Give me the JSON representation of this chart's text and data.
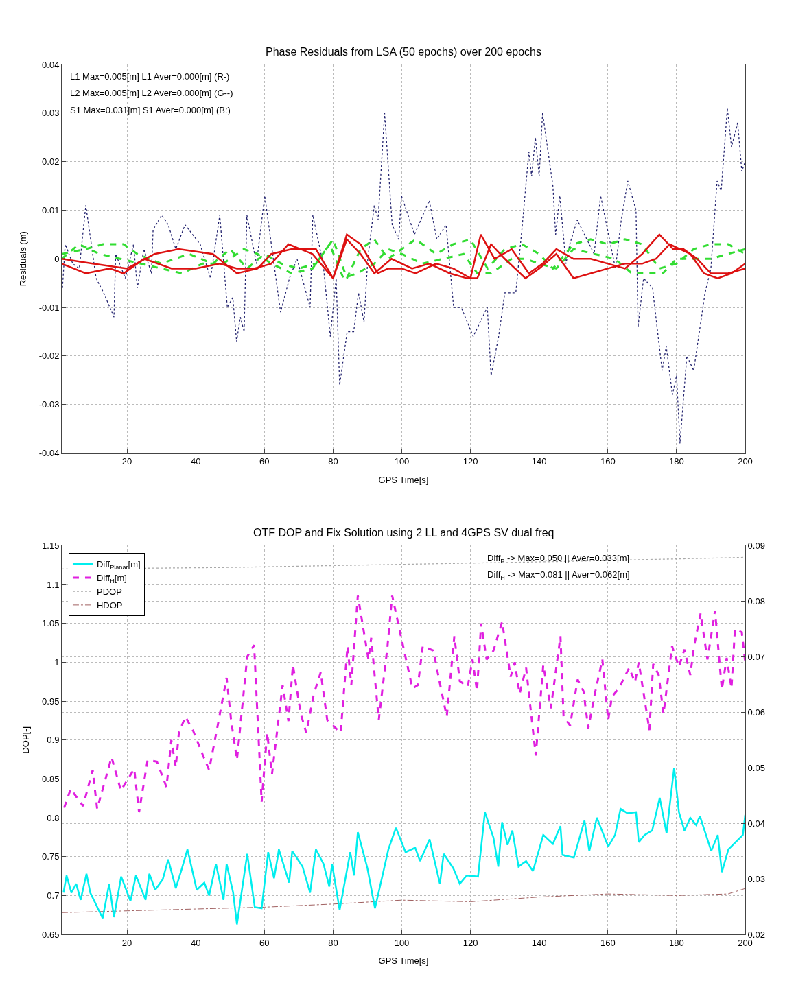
{
  "chart_data": [
    {
      "type": "line",
      "title": "Phase Residuals from LSA (50 epochs) over 200 epochs",
      "xlabel": "GPS Time[s]",
      "ylabel": "Residuals (m)",
      "annotations": [
        "L1 Max=0.005[m] L1 Aver=0.000[m] (R-)",
        "L2 Max=0.005[m] L2 Aver=0.000[m] (G--)",
        "S1 Max=0.031[m] S1 Aver=0.000[m] (B:)"
      ],
      "xlim": [
        1,
        200
      ],
      "xticks": [
        20,
        40,
        60,
        80,
        100,
        120,
        140,
        160,
        180,
        200
      ],
      "ylim": [
        -0.04,
        0.04
      ],
      "yticks": [
        -0.04,
        -0.03,
        -0.02,
        -0.01,
        0,
        0.01,
        0.02,
        0.03,
        0.04
      ],
      "grid": true,
      "legend": false,
      "marker": "none",
      "series": [
        {
          "color": "#22226e",
          "line_style": "dotted",
          "x": [
            1.2,
            2,
            4.2,
            6.1,
            8,
            11,
            13.2,
            16.2,
            16.7,
            19.5,
            21.9,
            23,
            24.9,
            27.1,
            27.6,
            30.1,
            32,
            34.2,
            36.9,
            39.1,
            41.3,
            44.3,
            47,
            49.2,
            50.8,
            51.9,
            53,
            54.1,
            54.9,
            57.7,
            60.1,
            64.7,
            67.3,
            69.5,
            73.3,
            74.1,
            77.1,
            79.2,
            80.9,
            81.9,
            84.1,
            86,
            87.4,
            89,
            90.1,
            92,
            93.1,
            95,
            97.2,
            99.1,
            99.9,
            103.7,
            108,
            110.2,
            112.9,
            115.1,
            117.3,
            120.8,
            124.9,
            126,
            128.2,
            130,
            133.2,
            135.1,
            137,
            137.8,
            138.9,
            140,
            141,
            144,
            144.8,
            146,
            147.8,
            148.9,
            151.1,
            156,
            157.9,
            162.2,
            163.9,
            165.8,
            168.2,
            168.8,
            170.4,
            173,
            175.8,
            177,
            178.8,
            180,
            181,
            183,
            185,
            188.3,
            190,
            191.8,
            193,
            194.8,
            196,
            197.8,
            199,
            200
          ],
          "values": [
            -0.006,
            0.003,
            -0.001,
            -0.002,
            0.011,
            -0.004,
            -0.007,
            -0.012,
            0.001,
            -0.004,
            0.003,
            -0.006,
            0.002,
            -0.003,
            0.006,
            0.009,
            0.007,
            0.002,
            0.007,
            0.005,
            0.003,
            -0.004,
            0.009,
            -0.01,
            -0.008,
            -0.017,
            -0.012,
            -0.015,
            0.009,
            -0.001,
            0.013,
            -0.011,
            -0.004,
            0,
            -0.01,
            0.009,
            -0.001,
            -0.016,
            -0.004,
            -0.026,
            -0.015,
            -0.015,
            -0.007,
            -0.013,
            0,
            0.011,
            0.008,
            0.03,
            0.007,
            0.004,
            0.013,
            0.005,
            0.012,
            0.004,
            0.007,
            -0.01,
            -0.01,
            -0.016,
            -0.01,
            -0.024,
            -0.016,
            -0.007,
            -0.007,
            0.007,
            0.022,
            0.017,
            0.025,
            0.017,
            0.03,
            0.015,
            0.005,
            0.013,
            -0.001,
            0.003,
            0.008,
            0.001,
            0.013,
            -0.002,
            0.008,
            0.016,
            0.01,
            -0.014,
            -0.004,
            -0.006,
            -0.023,
            -0.018,
            -0.028,
            -0.024,
            -0.038,
            -0.02,
            -0.023,
            -0.007,
            -0.002,
            0.016,
            0.014,
            0.031,
            0.023,
            0.028,
            0.018,
            0.02
          ]
        },
        {
          "color": "#33dd33",
          "line_style": "dashed",
          "x": [
            1,
            8,
            13,
            19,
            23,
            30,
            38,
            45,
            50,
            55,
            60,
            65,
            70,
            75,
            80,
            84,
            88,
            92,
            96,
            100,
            104,
            110,
            115,
            120,
            125,
            130,
            135,
            140,
            144,
            150,
            155,
            160,
            165,
            170,
            175,
            180,
            185,
            190,
            195,
            200
          ],
          "values": [
            0.001,
            0.002,
            0.003,
            0.003,
            0.001,
            -0.001,
            0.001,
            -0.001,
            0.002,
            -0.002,
            0.001,
            -0.001,
            -0.002,
            -0.001,
            0.004,
            -0.004,
            0.002,
            0.004,
            0,
            0.002,
            0.004,
            0.001,
            0.003,
            0.004,
            -0.002,
            0.002,
            0.003,
            0.001,
            -0.002,
            0.003,
            0.004,
            0.003,
            0.004,
            0.003,
            -0.002,
            -0.001,
            0.002,
            0.003,
            0.003,
            0.001
          ]
        },
        {
          "color": "#33dd33",
          "line_style": "dashed",
          "x": [
            1,
            6,
            12,
            18,
            24,
            30,
            36,
            42,
            48,
            54,
            58,
            62,
            68,
            74,
            79,
            83,
            87,
            92,
            96,
            100,
            106,
            112,
            118,
            122,
            126,
            132,
            136,
            140,
            145,
            150,
            156,
            162,
            167,
            172,
            176,
            180,
            185,
            190,
            195,
            200
          ],
          "values": [
            0,
            0.003,
            0.001,
            0,
            -0.001,
            -0.002,
            -0.003,
            -0.001,
            -0.001,
            0.002,
            0.001,
            -0.001,
            -0.003,
            -0.002,
            0.003,
            -0.004,
            -0.003,
            -0.001,
            0.002,
            0.001,
            -0.001,
            0,
            0.001,
            -0.003,
            -0.003,
            0,
            0,
            -0.001,
            -0.002,
            0.002,
            0.001,
            0,
            -0.003,
            -0.003,
            -0.003,
            0,
            0,
            0,
            0.001,
            0.002
          ]
        },
        {
          "color": "#dd1111",
          "line_style": "solid",
          "x": [
            1,
            10,
            20,
            28,
            35,
            45,
            52,
            58,
            62,
            68,
            75,
            80,
            84,
            88,
            93,
            96,
            100,
            104,
            110,
            115,
            120,
            123,
            127,
            132,
            137,
            141,
            145,
            150,
            155,
            160,
            165,
            170,
            175,
            179,
            182,
            186,
            190,
            195,
            200
          ],
          "values": [
            0,
            -0.001,
            -0.002,
            0.001,
            0.002,
            0.001,
            -0.003,
            -0.002,
            0.001,
            0.002,
            0.002,
            -0.004,
            0.005,
            0.003,
            -0.003,
            -0.002,
            -0.002,
            -0.003,
            -0.001,
            -0.002,
            -0.004,
            0.005,
            0,
            0.002,
            -0.003,
            -0.001,
            0.002,
            0,
            0,
            -0.001,
            -0.002,
            0.001,
            0.005,
            0.002,
            0.002,
            0,
            -0.003,
            -0.003,
            -0.002
          ]
        },
        {
          "color": "#dd1111",
          "line_style": "solid",
          "x": [
            1,
            8,
            15,
            19,
            25,
            33,
            40,
            47,
            52,
            57,
            62,
            67,
            74,
            80,
            84,
            88,
            92,
            97,
            103,
            108,
            114,
            119,
            122,
            126,
            130,
            136,
            140,
            145,
            150,
            155,
            160,
            165,
            170,
            174,
            178,
            184,
            188,
            192,
            196,
            200
          ],
          "values": [
            -0.001,
            -0.003,
            -0.002,
            -0.003,
            0,
            -0.002,
            -0.002,
            -0.001,
            -0.002,
            -0.002,
            -0.001,
            0.003,
            0.001,
            -0.004,
            0.004,
            0.001,
            -0.003,
            0,
            -0.002,
            -0.001,
            -0.003,
            -0.004,
            -0.004,
            0.003,
            0,
            -0.004,
            -0.002,
            0.001,
            -0.004,
            -0.003,
            -0.002,
            -0.001,
            -0.001,
            0,
            0.003,
            0.001,
            -0.003,
            -0.004,
            -0.003,
            -0.001
          ]
        }
      ]
    },
    {
      "type": "line",
      "title": "OTF DOP and Fix Solution using 2 LL and 4GPS SV dual freq",
      "xlabel": "GPS Time[s]",
      "ylabel": "DOP[-]",
      "annotations": [
        "Diff$_{P}$ -> Max=0.050 || Aver=0.033[m]",
        "Diff$_{H}$ -> Max=0.081 || Aver=0.062[m]"
      ],
      "xlim": [
        1,
        200
      ],
      "xticks": [
        20,
        40,
        60,
        80,
        100,
        120,
        140,
        160,
        180,
        200
      ],
      "ylim": [
        0.65,
        1.15
      ],
      "yticks": [
        0.65,
        0.7,
        0.75,
        0.8,
        0.85,
        0.9,
        0.95,
        1,
        1.05,
        1.1,
        1.15
      ],
      "y2lim": [
        0.02,
        0.09
      ],
      "y2ticks": [
        0.02,
        0.03,
        0.04,
        0.05,
        0.06,
        0.07,
        0.08,
        0.09
      ],
      "grid": true,
      "legend": "top left",
      "marker": "none",
      "series": [
        {
          "name": "Diff$_{Planar}$[m]",
          "color": "#00eeee",
          "line_style": "solid",
          "axis": "y2",
          "x": [
            1.5,
            2.4,
            3.8,
            5.2,
            6.5,
            8.2,
            9.3,
            12.9,
            14.8,
            16.2,
            18.3,
            21,
            22.6,
            25.4,
            26.5,
            28.2,
            30.4,
            32,
            34.2,
            35.9,
            37.6,
            40.3,
            42.5,
            43.9,
            45.9,
            48.1,
            49,
            50.9,
            52,
            55,
            57.2,
            59.2,
            61.1,
            62.8,
            63.9,
            64.2,
            67.2,
            68.1,
            71.1,
            73.3,
            75,
            77.2,
            78.9,
            79.7,
            81.9,
            85,
            86.1,
            87.2,
            90,
            92.2,
            94.2,
            96.1,
            98.3,
            101.1,
            103.9,
            105.3,
            108.1,
            111.1,
            112.2,
            115,
            116.9,
            118.9,
            122.2,
            124.2,
            126.7,
            128.1,
            129.2,
            130.8,
            132.2,
            134,
            136.2,
            138.2,
            141.2,
            144,
            146.2,
            146.8,
            150.1,
            153.2,
            154.6,
            156.8,
            160.1,
            162.1,
            163.7,
            165.7,
            168.2,
            169,
            170.7,
            172.9,
            175.1,
            177.1,
            177.9,
            179.3,
            180.7,
            182.3,
            184,
            185.7,
            186.8,
            190.1,
            192,
            193.2,
            195.1,
            199.3,
            200
          ],
          "values": [
            0.0275,
            0.0306,
            0.0275,
            0.0291,
            0.0262,
            0.0309,
            0.0275,
            0.0229,
            0.0291,
            0.0231,
            0.0304,
            0.026,
            0.0306,
            0.0262,
            0.0309,
            0.028,
            0.0299,
            0.0335,
            0.0283,
            0.0317,
            0.0353,
            0.028,
            0.0293,
            0.027,
            0.0327,
            0.0262,
            0.0327,
            0.0275,
            0.0218,
            0.0345,
            0.0249,
            0.0247,
            0.0348,
            0.0301,
            0.034,
            0.0353,
            0.0293,
            0.035,
            0.0322,
            0.0275,
            0.0353,
            0.0327,
            0.0286,
            0.0327,
            0.0244,
            0.0348,
            0.0306,
            0.0384,
            0.0319,
            0.0247,
            0.0301,
            0.0353,
            0.0392,
            0.0348,
            0.0356,
            0.0332,
            0.0371,
            0.0291,
            0.0345,
            0.0319,
            0.0291,
            0.0306,
            0.0304,
            0.042,
            0.0374,
            0.0322,
            0.0402,
            0.0361,
            0.0387,
            0.0322,
            0.0332,
            0.0314,
            0.0379,
            0.0363,
            0.0395,
            0.0343,
            0.0338,
            0.0405,
            0.035,
            0.041,
            0.0358,
            0.0379,
            0.0426,
            0.0418,
            0.042,
            0.0366,
            0.0379,
            0.0387,
            0.0446,
            0.0382,
            0.0426,
            0.05,
            0.042,
            0.0387,
            0.041,
            0.0397,
            0.0413,
            0.035,
            0.0379,
            0.0312,
            0.0353,
            0.0379,
            0.0415
          ]
        },
        {
          "name": "Diff$_{H}$[m]",
          "color": "#e020e0",
          "line_style": "dashed",
          "axis": "y2",
          "x": [
            1.7,
            3.6,
            7.2,
            10,
            11.3,
            15.5,
            18.2,
            22.1,
            23.5,
            26,
            28.7,
            31.5,
            32.9,
            34.2,
            35.1,
            37,
            39.3,
            42,
            43.9,
            46.4,
            49,
            50.3,
            52,
            55,
            57,
            59.2,
            60.8,
            62.2,
            65.3,
            67,
            68.3,
            70.6,
            72.2,
            74.4,
            76.4,
            78.3,
            82.2,
            84.2,
            85.3,
            87.2,
            90.3,
            91.1,
            93.3,
            95.8,
            97.2,
            99.4,
            103.1,
            104.7,
            106.1,
            109.2,
            110.6,
            113.1,
            115.3,
            116.9,
            119.2,
            120.6,
            121.9,
            123.1,
            124.7,
            126.7,
            129.2,
            131.7,
            132.9,
            134.3,
            136.2,
            139,
            141.2,
            143.4,
            146.2,
            147.1,
            149,
            151.2,
            152.9,
            154.3,
            156.2,
            158.4,
            160.1,
            161.2,
            163.2,
            166.2,
            167.9,
            169,
            172.1,
            173.2,
            174.8,
            176.2,
            178.7,
            180.7,
            182.3,
            184,
            185.1,
            187,
            189,
            191.2,
            193.2,
            194.6,
            196,
            197,
            199,
            200
          ],
          "values": [
            0.0428,
            0.0462,
            0.0431,
            0.0496,
            0.0426,
            0.0519,
            0.0459,
            0.0498,
            0.042,
            0.0514,
            0.0511,
            0.0465,
            0.055,
            0.0501,
            0.0563,
            0.0592,
            0.0566,
            0.0524,
            0.0496,
            0.0576,
            0.0662,
            0.0586,
            0.0514,
            0.07,
            0.0721,
            0.0439,
            0.0563,
            0.0488,
            0.0649,
            0.0584,
            0.0685,
            0.0597,
            0.0563,
            0.0633,
            0.0672,
            0.0586,
            0.0563,
            0.0719,
            0.0649,
            0.081,
            0.0695,
            0.0734,
            0.0586,
            0.0716,
            0.081,
            0.0747,
            0.0643,
            0.0649,
            0.0719,
            0.0711,
            0.0667,
            0.0592,
            0.0737,
            0.0656,
            0.0646,
            0.0695,
            0.0638,
            0.076,
            0.0695,
            0.0711,
            0.0763,
            0.0664,
            0.069,
            0.0633,
            0.068,
            0.0522,
            0.0685,
            0.0607,
            0.0737,
            0.0592,
            0.0576,
            0.0659,
            0.0638,
            0.0571,
            0.0633,
            0.0695,
            0.0586,
            0.0628,
            0.0643,
            0.068,
            0.0654,
            0.069,
            0.0568,
            0.0687,
            0.0667,
            0.0597,
            0.0719,
            0.0682,
            0.0713,
            0.0667,
            0.0719,
            0.0778,
            0.0695,
            0.0783,
            0.0641,
            0.0698,
            0.0643,
            0.075,
            0.0744,
            0.069
          ]
        },
        {
          "name": "PDOP",
          "color": "#aaaaaa",
          "line_style": "dotted",
          "x": [
            1,
            50,
            100,
            150,
            200
          ],
          "values": [
            1.12,
            1.122,
            1.126,
            1.13,
            1.135
          ]
        },
        {
          "name": "HDOP",
          "color": "#a06060",
          "line_style": "dashdot",
          "x": [
            1,
            60,
            80,
            100,
            120,
            140,
            160,
            180,
            195,
            200
          ],
          "values": [
            0.678,
            0.685,
            0.689,
            0.694,
            0.692,
            0.698,
            0.702,
            0.7,
            0.702,
            0.709
          ]
        }
      ]
    }
  ]
}
